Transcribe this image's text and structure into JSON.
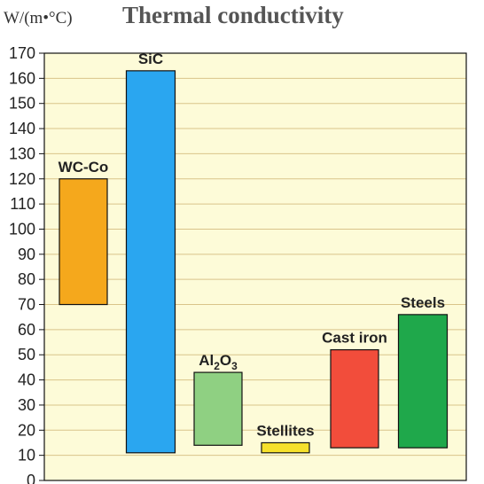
{
  "chart_data": {
    "type": "bar",
    "subtype": "floating-range",
    "title": "Thermal conductivity",
    "ylabel": "W/(m•°C)",
    "ylim": [
      0,
      170
    ],
    "yticks": [
      0,
      10,
      20,
      30,
      40,
      50,
      60,
      70,
      80,
      90,
      100,
      110,
      120,
      130,
      140,
      150,
      160,
      170
    ],
    "grid": true,
    "plot_background": "#fdfbd8",
    "grid_color": "#d9c48a",
    "series": [
      {
        "name": "WC-Co",
        "min": 70,
        "max": 120,
        "color": "#f5a81c"
      },
      {
        "name": "SiC",
        "min": 11,
        "max": 163,
        "color": "#2aa6f0"
      },
      {
        "name": "Al2O3",
        "label_base": "Al",
        "label_sub1": "2",
        "label_mid": "O",
        "label_sub2": "3",
        "min": 14,
        "max": 43,
        "color": "#8fd082"
      },
      {
        "name": "Stellites",
        "min": 11,
        "max": 15,
        "color": "#f6e12c"
      },
      {
        "name": "Cast iron",
        "min": 13,
        "max": 52,
        "color": "#f24d3b"
      },
      {
        "name": "Steels",
        "min": 13,
        "max": 66,
        "color": "#1fa84b"
      }
    ]
  }
}
